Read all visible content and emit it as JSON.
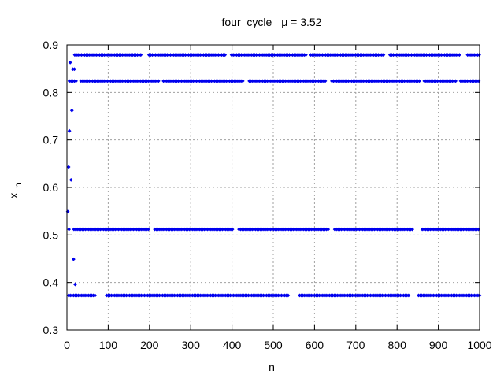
{
  "chart_data": {
    "type": "scatter",
    "title_parts": [
      "four_cycle",
      "μ = 3.52"
    ],
    "xlabel": "n",
    "ylabel_main": "x",
    "ylabel_sub": "n",
    "xlim": [
      0,
      1000
    ],
    "ylim": [
      0.3,
      0.9
    ],
    "xticks": [
      0,
      100,
      200,
      300,
      400,
      500,
      600,
      700,
      800,
      900,
      1000
    ],
    "xtick_labels": [
      "0",
      "100",
      "200",
      "300",
      "400",
      "500",
      "600",
      "700",
      "800",
      "900",
      "1000"
    ],
    "yticks": [
      0.3,
      0.4,
      0.5,
      0.6,
      0.7,
      0.8,
      0.9
    ],
    "ytick_labels": [
      "0.3",
      "0.4",
      "0.5",
      "0.6",
      "0.7",
      "0.8",
      "0.9"
    ],
    "grid": true,
    "marker_color": "#0000ee",
    "transient": [
      {
        "x": 2,
        "y": 0.549
      },
      {
        "x": 4,
        "y": 0.643
      },
      {
        "x": 6,
        "y": 0.719
      },
      {
        "x": 8,
        "y": 0.863
      },
      {
        "x": 10,
        "y": 0.616
      },
      {
        "x": 12,
        "y": 0.762
      },
      {
        "x": 14,
        "y": 0.849
      },
      {
        "x": 16,
        "y": 0.449
      },
      {
        "x": 18,
        "y": 0.849
      },
      {
        "x": 20,
        "y": 0.396
      }
    ],
    "cycle_levels": [
      0.373,
      0.512,
      0.824,
      0.879
    ],
    "x_start": 4,
    "x_end": 1000,
    "x_step": 4,
    "gaps": [
      [
        [
          72,
          92
        ],
        [
          540,
          560
        ],
        [
          830,
          848
        ]
      ],
      [
        [
          8,
          14
        ],
        [
          200,
          210
        ],
        [
          405,
          414
        ],
        [
          636,
          648
        ],
        [
          840,
          860
        ]
      ],
      [
        [
          25,
          32
        ],
        [
          226,
          232
        ],
        [
          430,
          440
        ],
        [
          630,
          638
        ],
        [
          855,
          862
        ],
        [
          945,
          952
        ]
      ],
      [
        [
          4,
          16
        ],
        [
          180,
          198
        ],
        [
          384,
          396
        ],
        [
          580,
          590
        ],
        [
          770,
          780
        ],
        [
          955,
          968
        ]
      ]
    ]
  }
}
